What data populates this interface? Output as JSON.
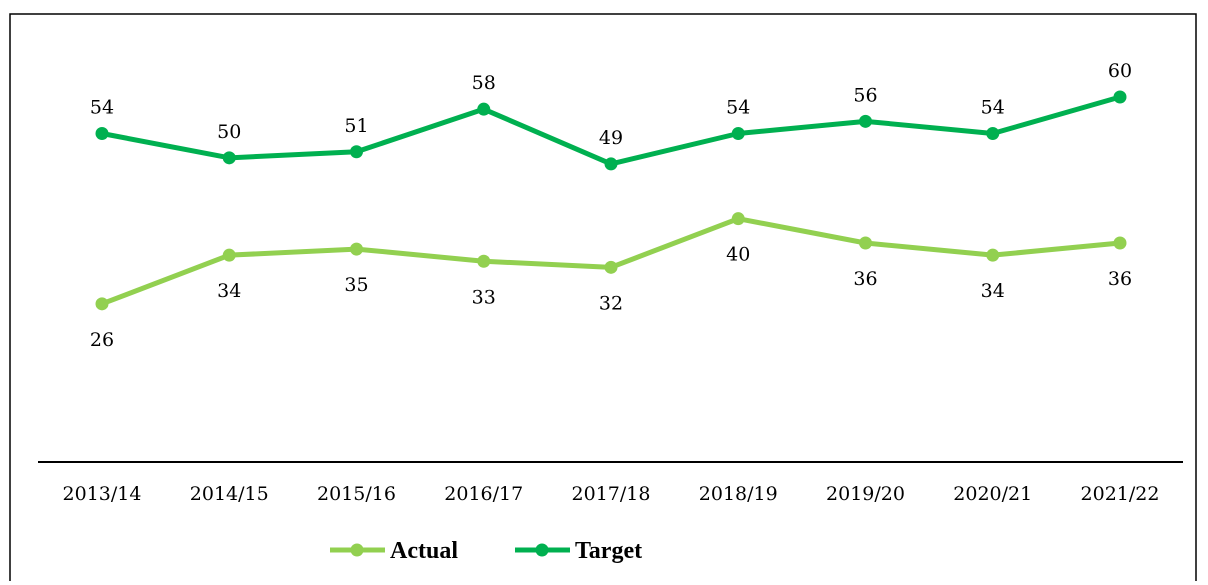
{
  "chart_data": {
    "type": "line",
    "categories": [
      "2013/14",
      "2014/15",
      "2015/16",
      "2016/17",
      "2017/18",
      "2018/19",
      "2019/20",
      "2020/21",
      "2021/22"
    ],
    "series": [
      {
        "name": "Actual",
        "color": "#92d050",
        "values": [
          26,
          34,
          35,
          33,
          32,
          40,
          36,
          34,
          36
        ]
      },
      {
        "name": "Target",
        "color": "#00b050",
        "values": [
          54,
          50,
          51,
          58,
          49,
          54,
          56,
          54,
          60
        ]
      }
    ],
    "ylim": [
      0,
      60
    ]
  }
}
